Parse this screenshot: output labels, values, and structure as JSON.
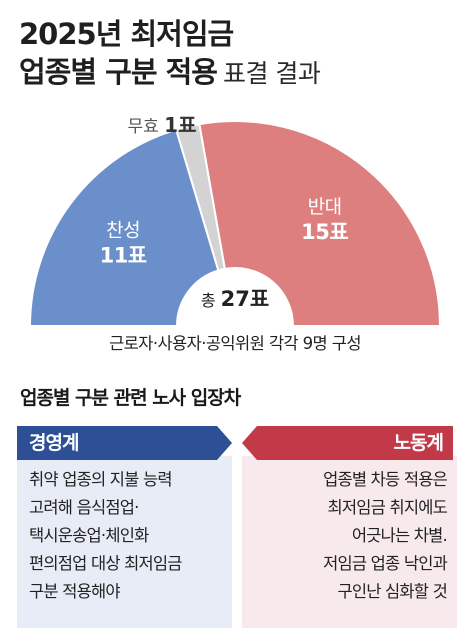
{
  "title": {
    "line1": "2025년 최저임금",
    "line2_strong": "업종별 구분 적용",
    "line2_light": "표결 결과"
  },
  "chart_data": {
    "type": "pie",
    "shape": "semicircle-donut",
    "categories": [
      "찬성",
      "무효",
      "반대"
    ],
    "values": [
      11,
      1,
      15
    ],
    "value_labels": [
      "11표",
      "1표",
      "15표"
    ],
    "colors": [
      "#6b8fcb",
      "#d3d3d3",
      "#de7f7f"
    ],
    "total_label": "총",
    "total_value": "27표"
  },
  "caption": "근로자·사용자·공익위원 각각 9명 구성",
  "positions_title": "업종별 구분 관련 노사 입장차",
  "employers": {
    "label": "경영계",
    "text": "취약 업종의 지불 능력\n고려해 음식점업·\n택시운송업·체인화\n편의점업 대상 최저임금\n구분 적용해야"
  },
  "labor": {
    "label": "노동계",
    "text": "업종별 차등 적용은\n최저임금 취지에도\n어긋나는 차별.\n저임금 업종 낙인과\n구인난 심화할 것"
  },
  "colors": {
    "employers_header": "#2c4f95",
    "employers_body": "#e7ecf6",
    "labor_header": "#c23a48",
    "labor_body": "#f8e9ec"
  }
}
